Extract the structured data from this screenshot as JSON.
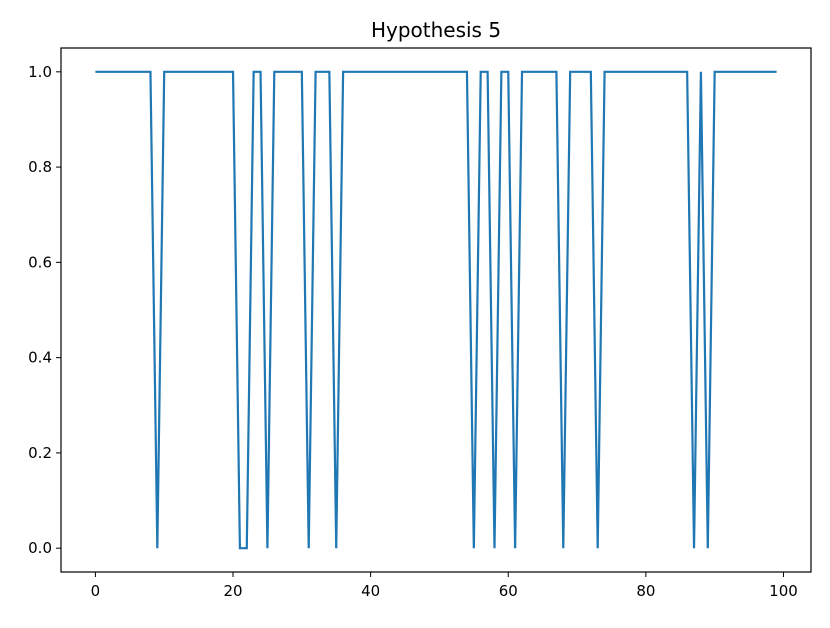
{
  "chart_data": {
    "type": "line",
    "title": "Hypothesis 5",
    "xlabel": "",
    "ylabel": "",
    "xlim": [
      -5,
      104
    ],
    "ylim": [
      -0.05,
      1.05
    ],
    "xticks": [
      0,
      20,
      40,
      60,
      80,
      100
    ],
    "xtick_labels": [
      "0",
      "20",
      "40",
      "60",
      "80",
      "100"
    ],
    "yticks": [
      0.0,
      0.2,
      0.4,
      0.6,
      0.8,
      1.0
    ],
    "ytick_labels": [
      "0.0",
      "0.2",
      "0.4",
      "0.6",
      "0.8",
      "1.0"
    ],
    "grid": false,
    "line_color": "#1f77b4",
    "series": [
      {
        "x": [
          0,
          1,
          2,
          3,
          4,
          5,
          6,
          7,
          8,
          9,
          10,
          11,
          12,
          13,
          14,
          15,
          16,
          17,
          18,
          19,
          20,
          21,
          22,
          23,
          24,
          25,
          26,
          27,
          28,
          29,
          30,
          31,
          32,
          33,
          34,
          35,
          36,
          37,
          38,
          39,
          40,
          41,
          42,
          43,
          44,
          45,
          46,
          47,
          48,
          49,
          50,
          51,
          52,
          53,
          54,
          55,
          56,
          57,
          58,
          59,
          60,
          61,
          62,
          63,
          64,
          65,
          66,
          67,
          68,
          69,
          70,
          71,
          72,
          73,
          74,
          75,
          76,
          77,
          78,
          79,
          80,
          81,
          82,
          83,
          84,
          85,
          86,
          87,
          88,
          89,
          90,
          91,
          92,
          93,
          94,
          95,
          96,
          97,
          98,
          99
        ],
        "values": [
          1,
          1,
          1,
          1,
          1,
          1,
          1,
          1,
          1,
          0,
          1,
          1,
          1,
          1,
          1,
          1,
          1,
          1,
          1,
          1,
          1,
          0,
          0,
          1,
          1,
          0,
          1,
          1,
          1,
          1,
          1,
          0,
          1,
          1,
          1,
          0,
          1,
          1,
          1,
          1,
          1,
          1,
          1,
          1,
          1,
          1,
          1,
          1,
          1,
          1,
          1,
          1,
          1,
          1,
          1,
          0,
          1,
          1,
          0,
          1,
          1,
          0,
          1,
          1,
          1,
          1,
          1,
          1,
          0,
          1,
          1,
          1,
          1,
          0,
          1,
          1,
          1,
          1,
          1,
          1,
          1,
          1,
          1,
          1,
          1,
          1,
          1,
          0,
          1,
          0,
          1,
          1,
          1,
          1,
          1,
          1,
          1,
          1,
          1,
          1
        ]
      }
    ]
  }
}
